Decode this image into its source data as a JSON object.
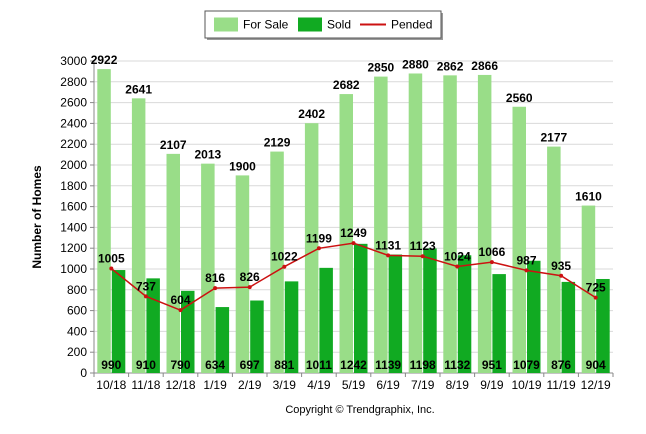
{
  "chart_data": {
    "type": "bar",
    "categories": [
      "10/18",
      "11/18",
      "12/18",
      "1/19",
      "2/19",
      "3/19",
      "4/19",
      "5/19",
      "6/19",
      "7/19",
      "8/19",
      "9/19",
      "10/19",
      "11/19",
      "12/19"
    ],
    "series": [
      {
        "name": "For Sale",
        "type": "bar",
        "color": "#99dd88",
        "values": [
          2922,
          2641,
          2107,
          2013,
          1900,
          2129,
          2402,
          2682,
          2850,
          2880,
          2862,
          2866,
          2560,
          2177,
          1610
        ]
      },
      {
        "name": "Sold",
        "type": "bar",
        "color": "#11aa22",
        "values": [
          990,
          910,
          790,
          634,
          697,
          881,
          1011,
          1242,
          1139,
          1198,
          1132,
          951,
          1079,
          876,
          904
        ]
      },
      {
        "name": "Pended",
        "type": "line",
        "color": "#cc1111",
        "values": [
          1005,
          737,
          604,
          816,
          826,
          1022,
          1199,
          1249,
          1131,
          1123,
          1024,
          1066,
          987,
          935,
          725
        ]
      }
    ],
    "xlabel": "",
    "ylabel": "Number of Homes",
    "ylim": [
      0,
      3000
    ],
    "yticks": [
      0,
      200,
      400,
      600,
      800,
      1000,
      1200,
      1400,
      1600,
      1800,
      2000,
      2200,
      2400,
      2600,
      2800,
      3000
    ],
    "grid": true,
    "legend_position": "top-center"
  },
  "copyright": "Copyright © Trendgraphix, Inc."
}
